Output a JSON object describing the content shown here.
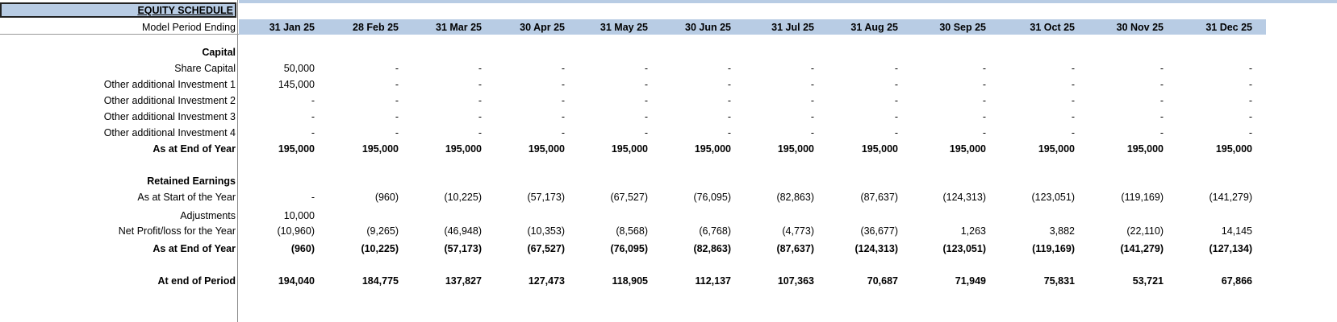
{
  "schedule_title": "EQUITY SCHEDULE",
  "period_label": "Model Period Ending",
  "periods": [
    "31 Jan 25",
    "28 Feb 25",
    "31 Mar 25",
    "30 Apr 25",
    "31 May 25",
    "30 Jun 25",
    "31 Jul 25",
    "31 Aug 25",
    "30 Sep 25",
    "31 Oct 25",
    "30 Nov 25",
    "31 Dec 25"
  ],
  "capital": {
    "heading": "Capital",
    "rows": [
      {
        "label": "Share Capital",
        "values": [
          "50,000",
          "-",
          "-",
          "-",
          "-",
          "-",
          "-",
          "-",
          "-",
          "-",
          "-",
          "-"
        ]
      },
      {
        "label": "Other additional Investment 1",
        "values": [
          "145,000",
          "-",
          "-",
          "-",
          "-",
          "-",
          "-",
          "-",
          "-",
          "-",
          "-",
          "-"
        ]
      },
      {
        "label": "Other additional Investment 2",
        "values": [
          "-",
          "-",
          "-",
          "-",
          "-",
          "-",
          "-",
          "-",
          "-",
          "-",
          "-",
          "-"
        ]
      },
      {
        "label": "Other additional Investment 3",
        "values": [
          "-",
          "-",
          "-",
          "-",
          "-",
          "-",
          "-",
          "-",
          "-",
          "-",
          "-",
          "-"
        ]
      },
      {
        "label": "Other additional Investment 4",
        "values": [
          "-",
          "-",
          "-",
          "-",
          "-",
          "-",
          "-",
          "-",
          "-",
          "-",
          "-",
          "-"
        ]
      }
    ],
    "total": {
      "label": "As at End of Year",
      "values": [
        "195,000",
        "195,000",
        "195,000",
        "195,000",
        "195,000",
        "195,000",
        "195,000",
        "195,000",
        "195,000",
        "195,000",
        "195,000",
        "195,000"
      ]
    }
  },
  "retained": {
    "heading": "Retained Earnings",
    "rows": [
      {
        "label": "As at Start of the Year",
        "values": [
          "-",
          "(960)",
          "(10,225)",
          "(57,173)",
          "(67,527)",
          "(76,095)",
          "(82,863)",
          "(87,637)",
          "(124,313)",
          "(123,051)",
          "(119,169)",
          "(141,279)"
        ]
      },
      {
        "label": "Adjustments",
        "values": [
          "10,000",
          "",
          "",
          "",
          "",
          "",
          "",
          "",
          "",
          "",
          "",
          ""
        ]
      },
      {
        "label": "Net Profit/loss for the Year",
        "values": [
          "(10,960)",
          "(9,265)",
          "(46,948)",
          "(10,353)",
          "(8,568)",
          "(6,768)",
          "(4,773)",
          "(36,677)",
          "1,263",
          "3,882",
          "(22,110)",
          "14,145"
        ]
      }
    ],
    "total": {
      "label": "As at End of Year",
      "values": [
        "(960)",
        "(10,225)",
        "(57,173)",
        "(67,527)",
        "(76,095)",
        "(82,863)",
        "(87,637)",
        "(124,313)",
        "(123,051)",
        "(119,169)",
        "(141,279)",
        "(127,134)"
      ]
    }
  },
  "period_total": {
    "label": "At end of Period",
    "values": [
      "194,040",
      "184,775",
      "137,827",
      "127,473",
      "118,905",
      "112,137",
      "107,363",
      "70,687",
      "71,949",
      "75,831",
      "53,721",
      "67,866"
    ]
  }
}
